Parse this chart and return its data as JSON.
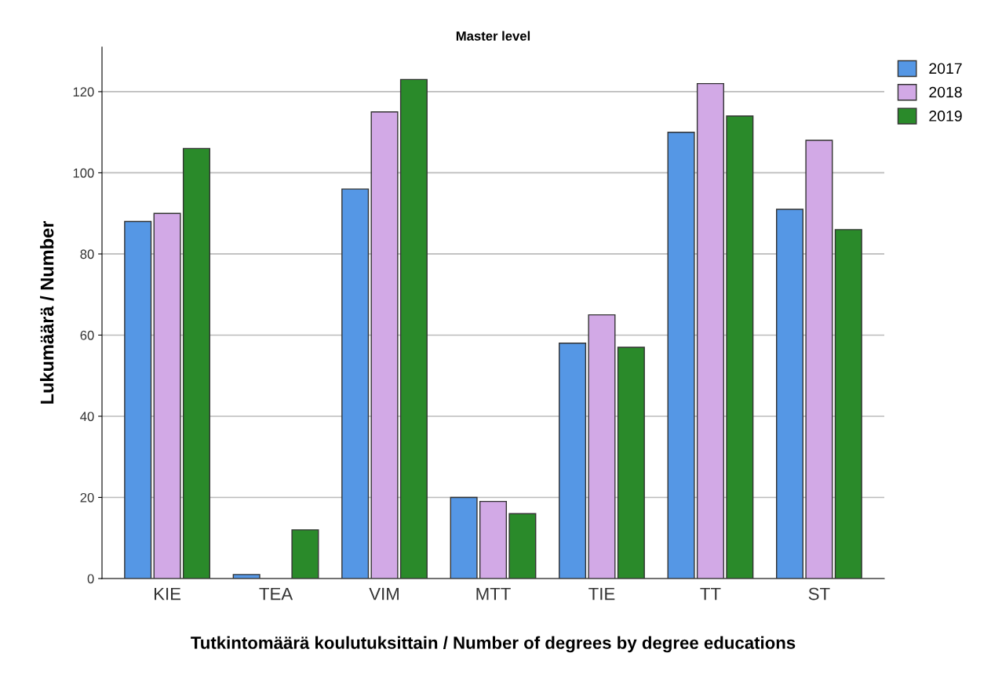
{
  "chart_data": {
    "type": "bar",
    "title": "Master level",
    "xlabel": "Tutkintomäärä koulutuksittain / Number of degrees by degree educations",
    "ylabel": "Lukumäärä / Number",
    "categories": [
      "KIE",
      "TEA",
      "VIM",
      "MTT",
      "TIE",
      "TT",
      "ST"
    ],
    "series": [
      {
        "name": "2017",
        "color": "#5597e5",
        "values": [
          88,
          1,
          96,
          20,
          58,
          110,
          91
        ]
      },
      {
        "name": "2018",
        "color": "#d2a9e6",
        "values": [
          90,
          null,
          115,
          19,
          65,
          122,
          108
        ]
      },
      {
        "name": "2019",
        "color": "#2a8a2a",
        "values": [
          106,
          12,
          123,
          16,
          57,
          114,
          86
        ]
      }
    ],
    "ylim": [
      0,
      131
    ],
    "yticks": [
      0,
      20,
      40,
      60,
      80,
      100,
      120
    ],
    "grid": "y",
    "legend": "top right"
  }
}
